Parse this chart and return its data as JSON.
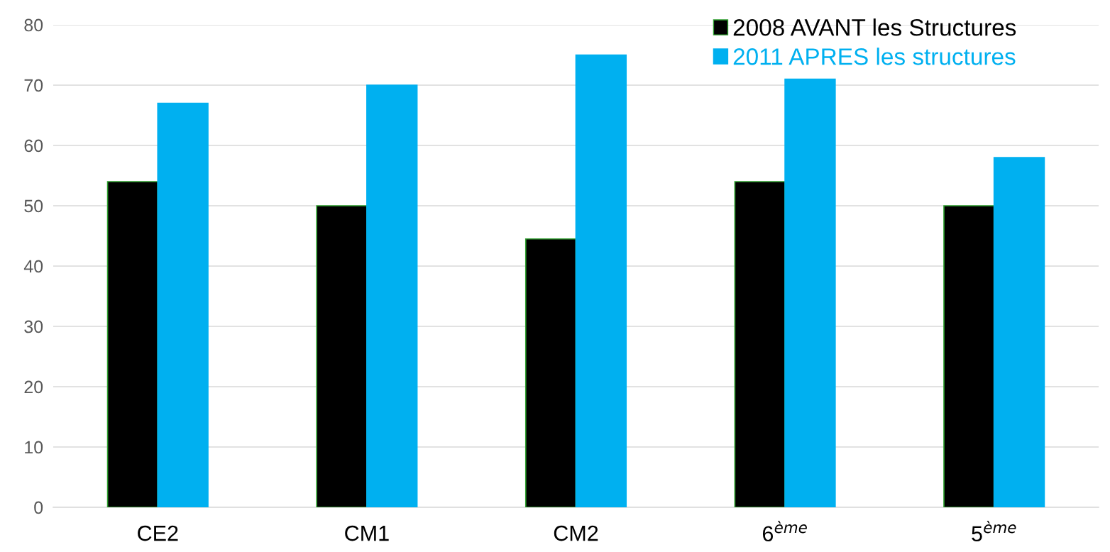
{
  "chart_data": {
    "type": "bar",
    "categories": [
      "CE2",
      "CM1",
      "CM2",
      "6$^{ème}$",
      "5$^{ème}$"
    ],
    "series": [
      {
        "name": "2008 AVANT les Structures",
        "color": "#000000",
        "values": [
          54,
          50,
          44.5,
          54,
          50
        ]
      },
      {
        "name": "2011 APRES les structures",
        "color": "#00b0f0",
        "values": [
          67,
          70,
          75,
          71,
          58
        ]
      }
    ],
    "ylim": [
      0,
      80
    ],
    "yticks": [
      0,
      10,
      20,
      30,
      40,
      50,
      60,
      70,
      80
    ],
    "grid": "y",
    "legend": "top right"
  }
}
